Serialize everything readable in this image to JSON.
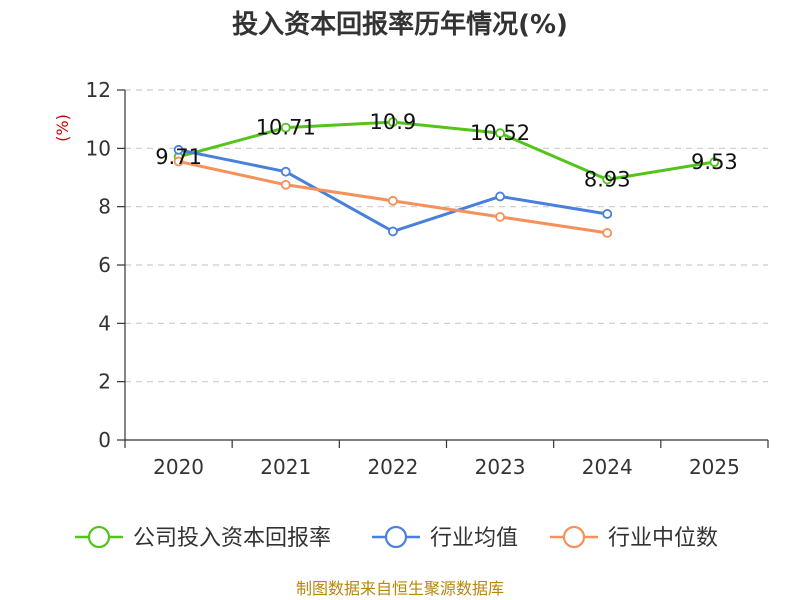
{
  "chart_data": {
    "type": "line",
    "title": "投入资本回报率历年情况(%)",
    "ylabel": "(%)",
    "categories": [
      "2020",
      "2021",
      "2022",
      "2023",
      "2024",
      "2025"
    ],
    "ylim": [
      0,
      12
    ],
    "yticks": [
      0,
      2,
      4,
      6,
      8,
      10,
      12
    ],
    "grid": true,
    "legend_position": "bottom",
    "series": [
      {
        "name": "公司投入资本回报率",
        "color": "#52c41a",
        "values": [
          9.71,
          10.71,
          10.9,
          10.52,
          8.93,
          9.53
        ],
        "labels": [
          "9.71",
          "10.71",
          "10.9",
          "10.52",
          "8.93",
          "9.53"
        ]
      },
      {
        "name": "行业均值",
        "color": "#4a7fdc",
        "values": [
          9.95,
          9.2,
          7.15,
          8.35,
          7.75,
          null
        ]
      },
      {
        "name": "行业中位数",
        "color": "#f5915a",
        "values": [
          9.55,
          8.75,
          8.2,
          7.65,
          7.1,
          null
        ]
      }
    ]
  },
  "source": "制图数据来自恒生聚源数据库"
}
